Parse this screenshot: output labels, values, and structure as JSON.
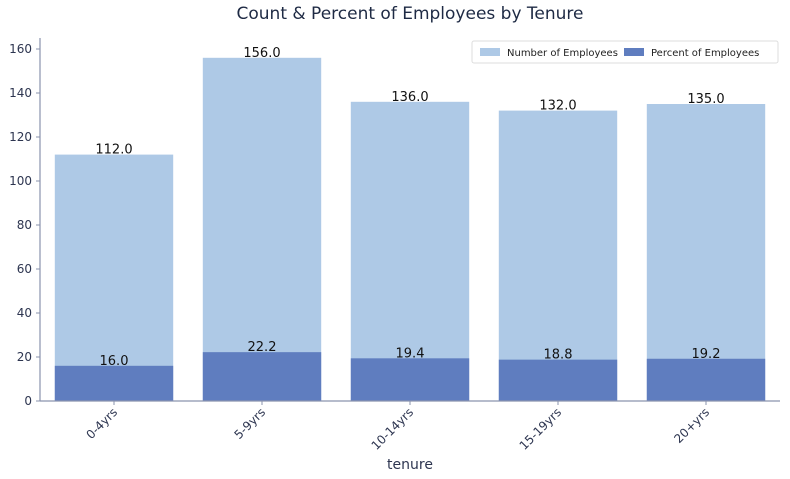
{
  "chart_data": {
    "type": "bar",
    "title": "Count & Percent of Employees by Tenure",
    "xlabel": "tenure",
    "ylabel": "",
    "categories": [
      "0-4yrs",
      "5-9yrs",
      "10-14yrs",
      "15-19yrs",
      "20+yrs"
    ],
    "series": [
      {
        "name": "Number of Employees",
        "values": [
          112.0,
          156.0,
          136.0,
          132.0,
          135.0
        ],
        "labels": [
          "112.0",
          "156.0",
          "136.0",
          "132.0",
          "135.0"
        ],
        "color": "#aec9e6"
      },
      {
        "name": "Percent of Employees",
        "values": [
          16.0,
          22.2,
          19.4,
          18.8,
          19.2
        ],
        "labels": [
          "16.0",
          "22.2",
          "19.4",
          "18.8",
          "19.2"
        ],
        "color": "#5f7dbf"
      }
    ],
    "overlay": true,
    "ylim": [
      0,
      165
    ],
    "yticks": [
      0,
      20,
      40,
      60,
      80,
      100,
      120,
      140,
      160
    ],
    "ytick_labels": [
      "0",
      "20",
      "40",
      "60",
      "80",
      "100",
      "120",
      "140",
      "160"
    ],
    "xtick_rotation": 45,
    "grid": false,
    "legend_position": "top-right",
    "axis_color": "#8a93ad"
  }
}
